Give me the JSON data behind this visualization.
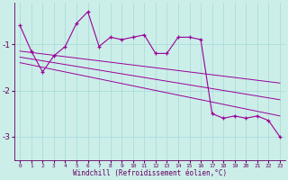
{
  "xlabel": "Windchill (Refroidissement éolien,°C)",
  "background_color": "#cceee8",
  "grid_color": "#aadddd",
  "line_color": "#990099",
  "x_values": [
    0,
    1,
    2,
    3,
    4,
    5,
    6,
    7,
    8,
    9,
    10,
    11,
    12,
    13,
    14,
    15,
    16,
    17,
    18,
    19,
    20,
    21,
    22,
    23
  ],
  "y_main": [
    -0.6,
    -1.15,
    -1.6,
    -1.25,
    -1.05,
    -0.55,
    -0.3,
    -1.05,
    -0.85,
    -0.9,
    -0.85,
    -0.8,
    -1.2,
    -1.2,
    -0.85,
    -0.85,
    -0.9,
    -2.5,
    -2.6,
    -2.55,
    -2.6,
    -2.55,
    -2.65,
    -3.0
  ],
  "y_line1": [
    -1.15,
    -1.18,
    -1.21,
    -1.24,
    -1.27,
    -1.3,
    -1.33,
    -1.36,
    -1.39,
    -1.42,
    -1.45,
    -1.48,
    -1.51,
    -1.54,
    -1.57,
    -1.6,
    -1.63,
    -1.66,
    -1.69,
    -1.72,
    -1.75,
    -1.78,
    -1.81,
    -1.84
  ],
  "y_line2": [
    -1.28,
    -1.32,
    -1.36,
    -1.4,
    -1.44,
    -1.48,
    -1.52,
    -1.56,
    -1.6,
    -1.64,
    -1.68,
    -1.72,
    -1.76,
    -1.8,
    -1.84,
    -1.88,
    -1.92,
    -1.96,
    -2.0,
    -2.04,
    -2.08,
    -2.12,
    -2.16,
    -2.2
  ],
  "y_line3": [
    -1.4,
    -1.45,
    -1.5,
    -1.55,
    -1.6,
    -1.65,
    -1.7,
    -1.75,
    -1.8,
    -1.85,
    -1.9,
    -1.95,
    -2.0,
    -2.05,
    -2.1,
    -2.15,
    -2.2,
    -2.25,
    -2.3,
    -2.35,
    -2.4,
    -2.45,
    -2.5,
    -2.55
  ],
  "ylim": [
    -3.5,
    -0.1
  ],
  "xlim": [
    -0.5,
    23.5
  ],
  "yticks": [
    -3,
    -2,
    -1
  ],
  "xticks": [
    0,
    1,
    2,
    3,
    4,
    5,
    6,
    7,
    8,
    9,
    10,
    11,
    12,
    13,
    14,
    15,
    16,
    17,
    18,
    19,
    20,
    21,
    22,
    23
  ]
}
